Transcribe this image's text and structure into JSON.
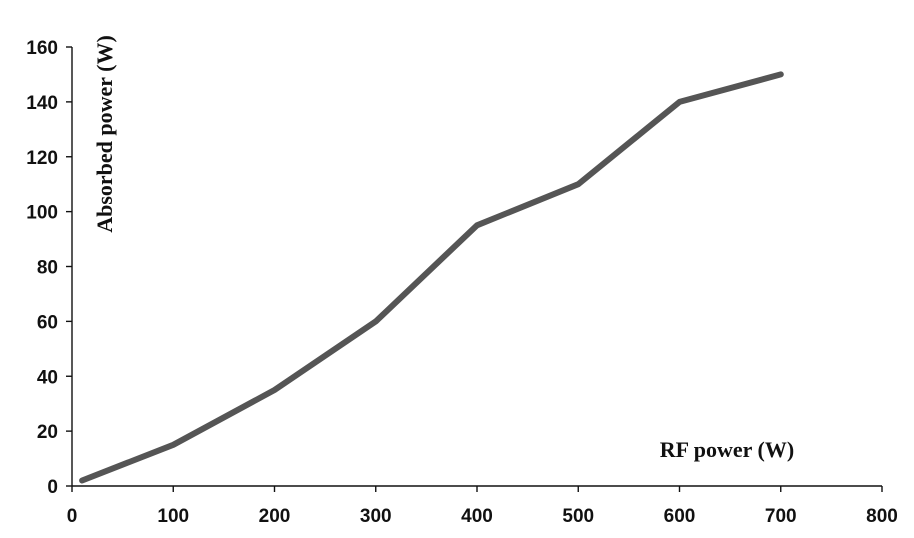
{
  "chart_data": {
    "type": "line",
    "title": "",
    "xlabel": "RF power (W)",
    "ylabel": "Absorbed power (W)",
    "xlim": [
      0,
      800
    ],
    "ylim": [
      0,
      160
    ],
    "x_ticks": [
      0,
      100,
      200,
      300,
      400,
      500,
      600,
      700,
      800
    ],
    "y_ticks": [
      0,
      20,
      40,
      60,
      80,
      100,
      120,
      140,
      160
    ],
    "grid": false,
    "legend": "none",
    "series": [
      {
        "color": "#555555",
        "x": [
          10,
          100,
          200,
          300,
          400,
          500,
          600,
          700
        ],
        "y": [
          2,
          15,
          35,
          60,
          95,
          110,
          140,
          150
        ]
      }
    ]
  }
}
